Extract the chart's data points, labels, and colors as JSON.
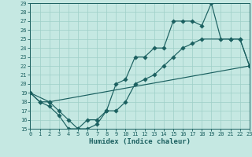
{
  "xlabel": "Humidex (Indice chaleur)",
  "bg_color": "#c5e8e2",
  "grid_color": "#9ecfc7",
  "line_color": "#1b6060",
  "xlim": [
    0,
    23
  ],
  "ylim": [
    15,
    29
  ],
  "xticks": [
    0,
    1,
    2,
    3,
    4,
    5,
    6,
    7,
    8,
    9,
    10,
    11,
    12,
    13,
    14,
    15,
    16,
    17,
    18,
    19,
    20,
    21,
    22,
    23
  ],
  "yticks": [
    15,
    16,
    17,
    18,
    19,
    20,
    21,
    22,
    23,
    24,
    25,
    26,
    27,
    28,
    29
  ],
  "line1_x": [
    0,
    1,
    2,
    3,
    4,
    5,
    6,
    7,
    8,
    9,
    10,
    11,
    12,
    13,
    14,
    15,
    16,
    17,
    18,
    19,
    20,
    21,
    22,
    23
  ],
  "line1_y": [
    19,
    18,
    18,
    17,
    16,
    15,
    16,
    16,
    17,
    20,
    20.5,
    23,
    23,
    24,
    24,
    27,
    27,
    27,
    26.5,
    29,
    25,
    25,
    25,
    22
  ],
  "line2_x": [
    0,
    1,
    2,
    3,
    4,
    5,
    6,
    7,
    8,
    9,
    10,
    11,
    12,
    13,
    14,
    15,
    16,
    17,
    18,
    21,
    22,
    23
  ],
  "line2_y": [
    19,
    18,
    17.5,
    16.5,
    15,
    15,
    15,
    15.5,
    17,
    17,
    18,
    20,
    20.5,
    21,
    22,
    23,
    24,
    24.5,
    25,
    25,
    25,
    22
  ],
  "line3_x": [
    0,
    2,
    23
  ],
  "line3_y": [
    19,
    18,
    22
  ]
}
